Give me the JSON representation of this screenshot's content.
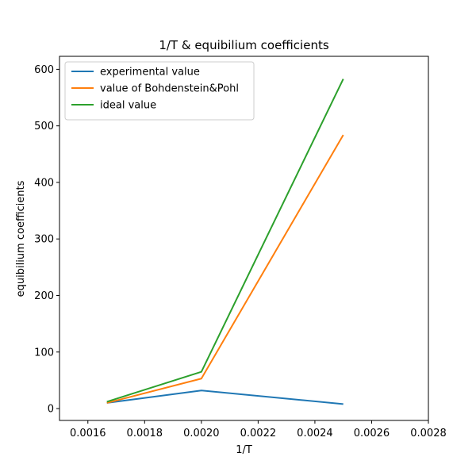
{
  "chart_data": {
    "type": "line",
    "title": "1/T & equibilium coefficients",
    "xlabel": "1/T",
    "ylabel": "equibilium coefficients",
    "xlim": [
      0.0015,
      0.0028
    ],
    "ylim": [
      -21,
      623
    ],
    "xticks": [
      0.0016,
      0.0018,
      0.002,
      0.0022,
      0.0024,
      0.0026,
      0.0028
    ],
    "xtick_labels": [
      "0.0016",
      "0.0018",
      "0.0020",
      "0.0022",
      "0.0024",
      "0.0026",
      "0.0028"
    ],
    "yticks": [
      0,
      100,
      200,
      300,
      400,
      500,
      600
    ],
    "ytick_labels": [
      "0",
      "100",
      "200",
      "300",
      "400",
      "500",
      "600"
    ],
    "grid": false,
    "legend_position": "top-left",
    "x": [
      0.001667,
      0.002,
      0.0025
    ],
    "series": [
      {
        "name": "experimental value",
        "color": "#1f77b4",
        "values": [
          10,
          32,
          8
        ]
      },
      {
        "name": "value of Bohdenstein&Pohl",
        "color": "#ff7f0e",
        "values": [
          10,
          53,
          484
        ]
      },
      {
        "name": "ideal value",
        "color": "#2ca02c",
        "values": [
          12,
          65,
          583
        ]
      }
    ]
  }
}
